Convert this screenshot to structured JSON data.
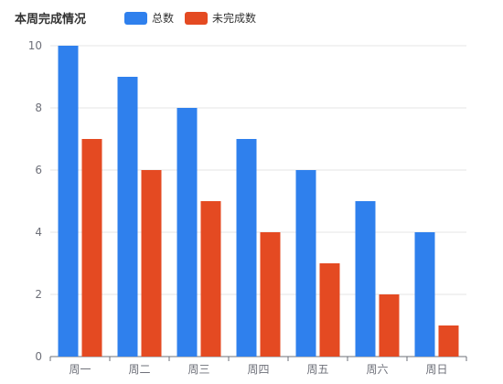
{
  "chart_data": {
    "type": "bar",
    "title": "本周完成情况",
    "categories": [
      "周一",
      "周二",
      "周三",
      "周四",
      "周五",
      "周六",
      "周日"
    ],
    "series": [
      {
        "name": "总数",
        "values": [
          10,
          9,
          8,
          7,
          6,
          5,
          4
        ],
        "color": "#2f80ed"
      },
      {
        "name": "未完成数",
        "values": [
          7,
          6,
          5,
          4,
          3,
          2,
          1
        ],
        "color": "#e44a22"
      }
    ],
    "ylim": [
      0,
      10
    ],
    "yticks": [
      0,
      2,
      4,
      6,
      8,
      10
    ],
    "grid": true,
    "legend_position": "top"
  }
}
